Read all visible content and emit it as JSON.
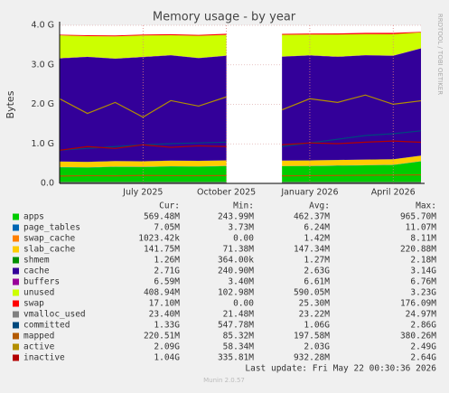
{
  "chart_data": {
    "type": "area",
    "title": "Memory usage - by year",
    "ylabel": "Bytes",
    "side_text": "RRDTOOL / TOBI OETIKER",
    "footer": "Last update: Fri May 22 00:30:36 2026",
    "version": "Munin 2.0.57",
    "legend_headers": [
      "Cur:",
      "Min:",
      "Avg:",
      "Max:"
    ],
    "categories": [
      null,
      null,
      null,
      "July 2025",
      null,
      null,
      "October 2025",
      null,
      null,
      "January 2026",
      null,
      null,
      "April 2026",
      null
    ],
    "ylim": [
      0,
      4294967296
    ],
    "yticks": [
      {
        "value": 0,
        "label": "0.0"
      },
      {
        "value": 1073741824,
        "label": "1.0 G"
      },
      {
        "value": 2147483648,
        "label": "2.0 G"
      },
      {
        "value": 3221225472,
        "label": "3.0 G"
      },
      {
        "value": 4294967296,
        "label": "4.0 G"
      }
    ],
    "grid": true,
    "series": [
      {
        "name": "apps",
        "color": "#00CC00",
        "style": "area",
        "cur": "569.48M",
        "min": "243.99M",
        "avg": "462.37M",
        "max": "965.70M",
        "values": [
          440000000,
          430000000,
          450000000,
          445000000,
          460000000,
          455000000,
          470000000,
          null,
          465000000,
          470000000,
          480000000,
          490000000,
          500000000,
          597140000
        ]
      },
      {
        "name": "page_tables",
        "color": "#0066B3",
        "style": "area",
        "cur": "7.05M",
        "min": "3.73M",
        "avg": "6.24M",
        "max": "11.07M",
        "values": [
          6000000,
          6100000,
          6200000,
          6200000,
          6300000,
          6200000,
          6300000,
          null,
          6300000,
          6400000,
          6300000,
          6400000,
          6500000,
          7390000
        ]
      },
      {
        "name": "swap_cache",
        "color": "#FF8000",
        "style": "area",
        "cur": "1023.42k",
        "min": "0.00",
        "avg": "1.42M",
        "max": "8.11M",
        "values": [
          1500000,
          1400000,
          1400000,
          1500000,
          1400000,
          1300000,
          1400000,
          null,
          1500000,
          1400000,
          1400000,
          1300000,
          1200000,
          1048000
        ]
      },
      {
        "name": "slab_cache",
        "color": "#FFCC00",
        "style": "area",
        "cur": "141.75M",
        "min": "71.38M",
        "avg": "147.34M",
        "max": "220.88M",
        "values": [
          145000000,
          146000000,
          148000000,
          147000000,
          150000000,
          149000000,
          148000000,
          null,
          147000000,
          146000000,
          148000000,
          149000000,
          147000000,
          148630000
        ]
      },
      {
        "name": "shmem",
        "color": "#008F00",
        "style": "area",
        "cur": "1.26M",
        "min": "364.00k",
        "avg": "1.27M",
        "max": "2.18M",
        "values": [
          1300000,
          1300000,
          1300000,
          1300000,
          1300000,
          1300000,
          1300000,
          null,
          1300000,
          1300000,
          1300000,
          1300000,
          1300000,
          1321000
        ]
      },
      {
        "name": "cache",
        "color": "#330099",
        "style": "area",
        "cur": "2.71G",
        "min": "240.90M",
        "avg": "2.63G",
        "max": "3.14G",
        "values": [
          2800000000,
          2850000000,
          2780000000,
          2830000000,
          2860000000,
          2790000000,
          2840000000,
          null,
          2820000000,
          2850000000,
          2800000000,
          2830000000,
          2810000000,
          2909000000
        ]
      },
      {
        "name": "buffers",
        "color": "#990099",
        "style": "area",
        "cur": "6.59M",
        "min": "3.40M",
        "avg": "6.61M",
        "max": "6.76M",
        "values": [
          6900000,
          6900000,
          6900000,
          6900000,
          6900000,
          6900000,
          6900000,
          null,
          6900000,
          6900000,
          6900000,
          6900000,
          6900000,
          6910000
        ]
      },
      {
        "name": "unused",
        "color": "#CCFF00",
        "style": "area",
        "cur": "408.94M",
        "min": "102.98M",
        "avg": "590.05M",
        "max": "3.23G",
        "values": [
          620000000,
          560000000,
          600000000,
          580000000,
          540000000,
          600000000,
          560000000,
          null,
          590000000,
          560000000,
          600000000,
          570000000,
          580000000,
          428810000
        ]
      },
      {
        "name": "swap",
        "color": "#FF0000",
        "style": "area",
        "cur": "17.10M",
        "min": "0.00",
        "avg": "25.30M",
        "max": "176.09M",
        "values": [
          20000000,
          22000000,
          24000000,
          26000000,
          28000000,
          26000000,
          30000000,
          null,
          25000000,
          28000000,
          30000000,
          35000000,
          38000000,
          17930000
        ]
      },
      {
        "name": "vmalloc_used",
        "color": "#808080",
        "style": "line",
        "cur": "23.40M",
        "min": "21.48M",
        "avg": "23.22M",
        "max": "24.97M",
        "values": [
          24000000,
          24200000,
          24100000,
          24300000,
          24400000,
          24200000,
          24300000,
          null,
          24100000,
          24300000,
          24400000,
          24500000,
          24400000,
          24540000
        ]
      },
      {
        "name": "committed",
        "color": "#00487D",
        "style": "line",
        "cur": "1.33G",
        "min": "547.78M",
        "avg": "1.06G",
        "max": "2.86G",
        "values": [
          900000000,
          950000000,
          1000000000,
          1050000000,
          1080000000,
          1100000000,
          1120000000,
          null,
          1000000000,
          1100000000,
          1200000000,
          1300000000,
          1350000000,
          1428000000
        ]
      },
      {
        "name": "mapped",
        "color": "#B35A00",
        "style": "line",
        "cur": "220.51M",
        "min": "85.32M",
        "avg": "197.58M",
        "max": "380.26M",
        "values": [
          200000000,
          210000000,
          205000000,
          215000000,
          210000000,
          208000000,
          212000000,
          null,
          205000000,
          210000000,
          215000000,
          220000000,
          225000000,
          231220000
        ]
      },
      {
        "name": "active",
        "color": "#B38F00",
        "style": "line",
        "cur": "2.09G",
        "min": "58.34M",
        "avg": "2.03G",
        "max": "2.49G",
        "values": [
          2300000000,
          1900000000,
          2200000000,
          1800000000,
          2250000000,
          2100000000,
          2350000000,
          null,
          2000000000,
          2300000000,
          2200000000,
          2400000000,
          2150000000,
          2244000000
        ]
      },
      {
        "name": "inactive",
        "color": "#B30000",
        "style": "line",
        "cur": "1.04G",
        "min": "335.81M",
        "avg": "932.28M",
        "max": "2.64G",
        "values": [
          900000000,
          1000000000,
          950000000,
          1050000000,
          980000000,
          1020000000,
          1000000000,
          null,
          1050000000,
          1100000000,
          1080000000,
          1120000000,
          1150000000,
          1117000000
        ]
      }
    ]
  }
}
